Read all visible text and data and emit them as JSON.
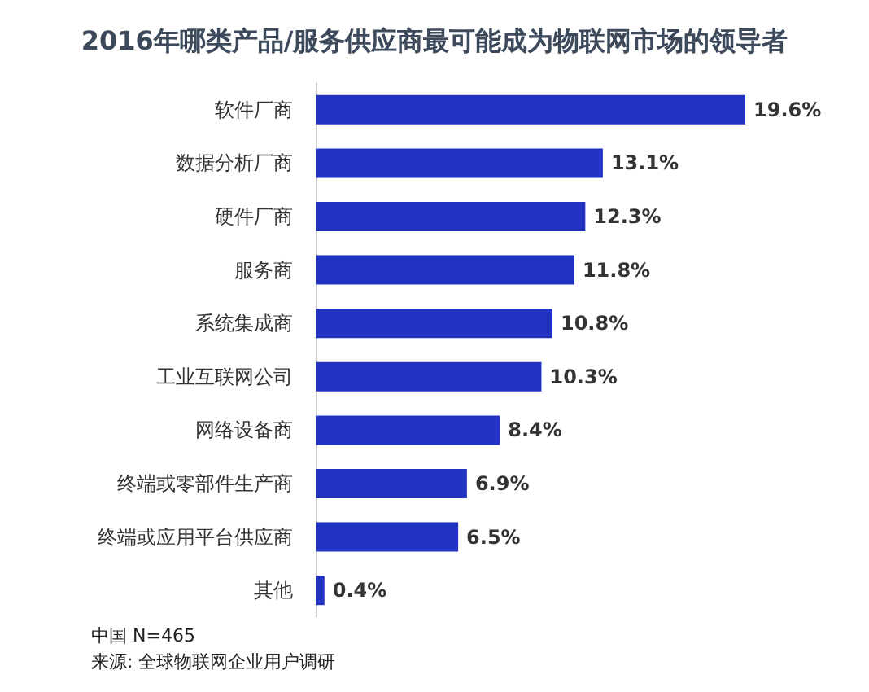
{
  "chart_data": {
    "type": "bar",
    "orientation": "horizontal",
    "title": "2016年哪类产品/服务供应商最可能成为物联网市场的领导者",
    "categories": [
      "软件厂商",
      "数据分析厂商",
      "硬件厂商",
      "服务商",
      "系统集成商",
      "工业互联网公司",
      "网络设备商",
      "终端或零部件生产商",
      "终端或应用平台供应商",
      "其他"
    ],
    "values": [
      19.6,
      13.1,
      12.3,
      11.8,
      10.8,
      10.3,
      8.4,
      6.9,
      6.5,
      0.4
    ],
    "value_labels": [
      "19.6%",
      "13.1%",
      "12.3%",
      "11.8%",
      "10.8%",
      "10.3%",
      "8.4%",
      "6.9%",
      "6.5%",
      "0.4%"
    ],
    "color": "#2233c4",
    "grid": false,
    "annotations": [
      "中国 N=465",
      "来源: 全球物联网企业用户调研"
    ]
  }
}
